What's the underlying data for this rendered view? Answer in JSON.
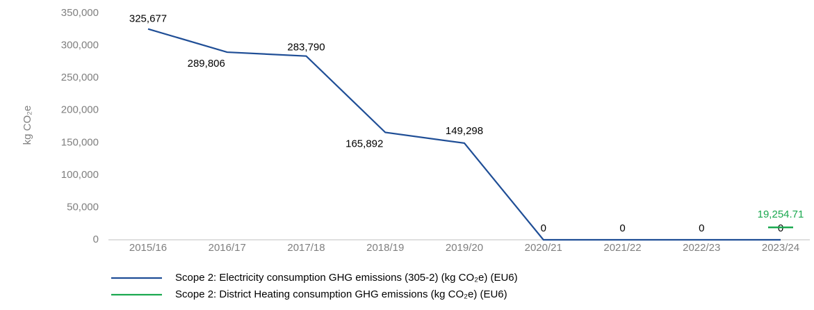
{
  "chart_data": {
    "type": "line",
    "ylabel": "kg CO₂e",
    "categories": [
      "2015/16",
      "2016/17",
      "2017/18",
      "2018/19",
      "2019/20",
      "2020/21",
      "2021/22",
      "2022/23",
      "2023/24"
    ],
    "series": [
      {
        "name": "Scope 2: Electricity consumption GHG emissions (305-2) (kg CO₂e) (EU6)",
        "color": "#1f4e96",
        "values": [
          325677,
          289806,
          283790,
          165892,
          149298,
          0,
          0,
          0,
          0
        ],
        "value_labels": [
          "325,677",
          "289,806",
          "283,790",
          "165,892",
          "149,298",
          "0",
          "0",
          "0",
          "0"
        ]
      },
      {
        "name": "Scope 2: District Heating consumption GHG emissions (kg CO₂e) (EU6)",
        "color": "#1aa84f",
        "values": [
          null,
          null,
          null,
          null,
          null,
          null,
          null,
          null,
          19254.71
        ],
        "value_labels": [
          null,
          null,
          null,
          null,
          null,
          null,
          null,
          null,
          "19,254.71"
        ]
      }
    ],
    "ylim": [
      0,
      350000
    ],
    "yticks": [
      0,
      {
        "value": 50000,
        "label": "50,000"
      },
      {
        "value": 100000,
        "label": "100,000"
      },
      {
        "value": 150000,
        "label": "150,000"
      },
      {
        "value": 200000,
        "label": "200,000"
      },
      {
        "value": 250000,
        "label": "250,000"
      },
      {
        "value": 300000,
        "label": "300,000"
      },
      {
        "value": 350000,
        "label": "350,000"
      }
    ],
    "grid": false
  }
}
